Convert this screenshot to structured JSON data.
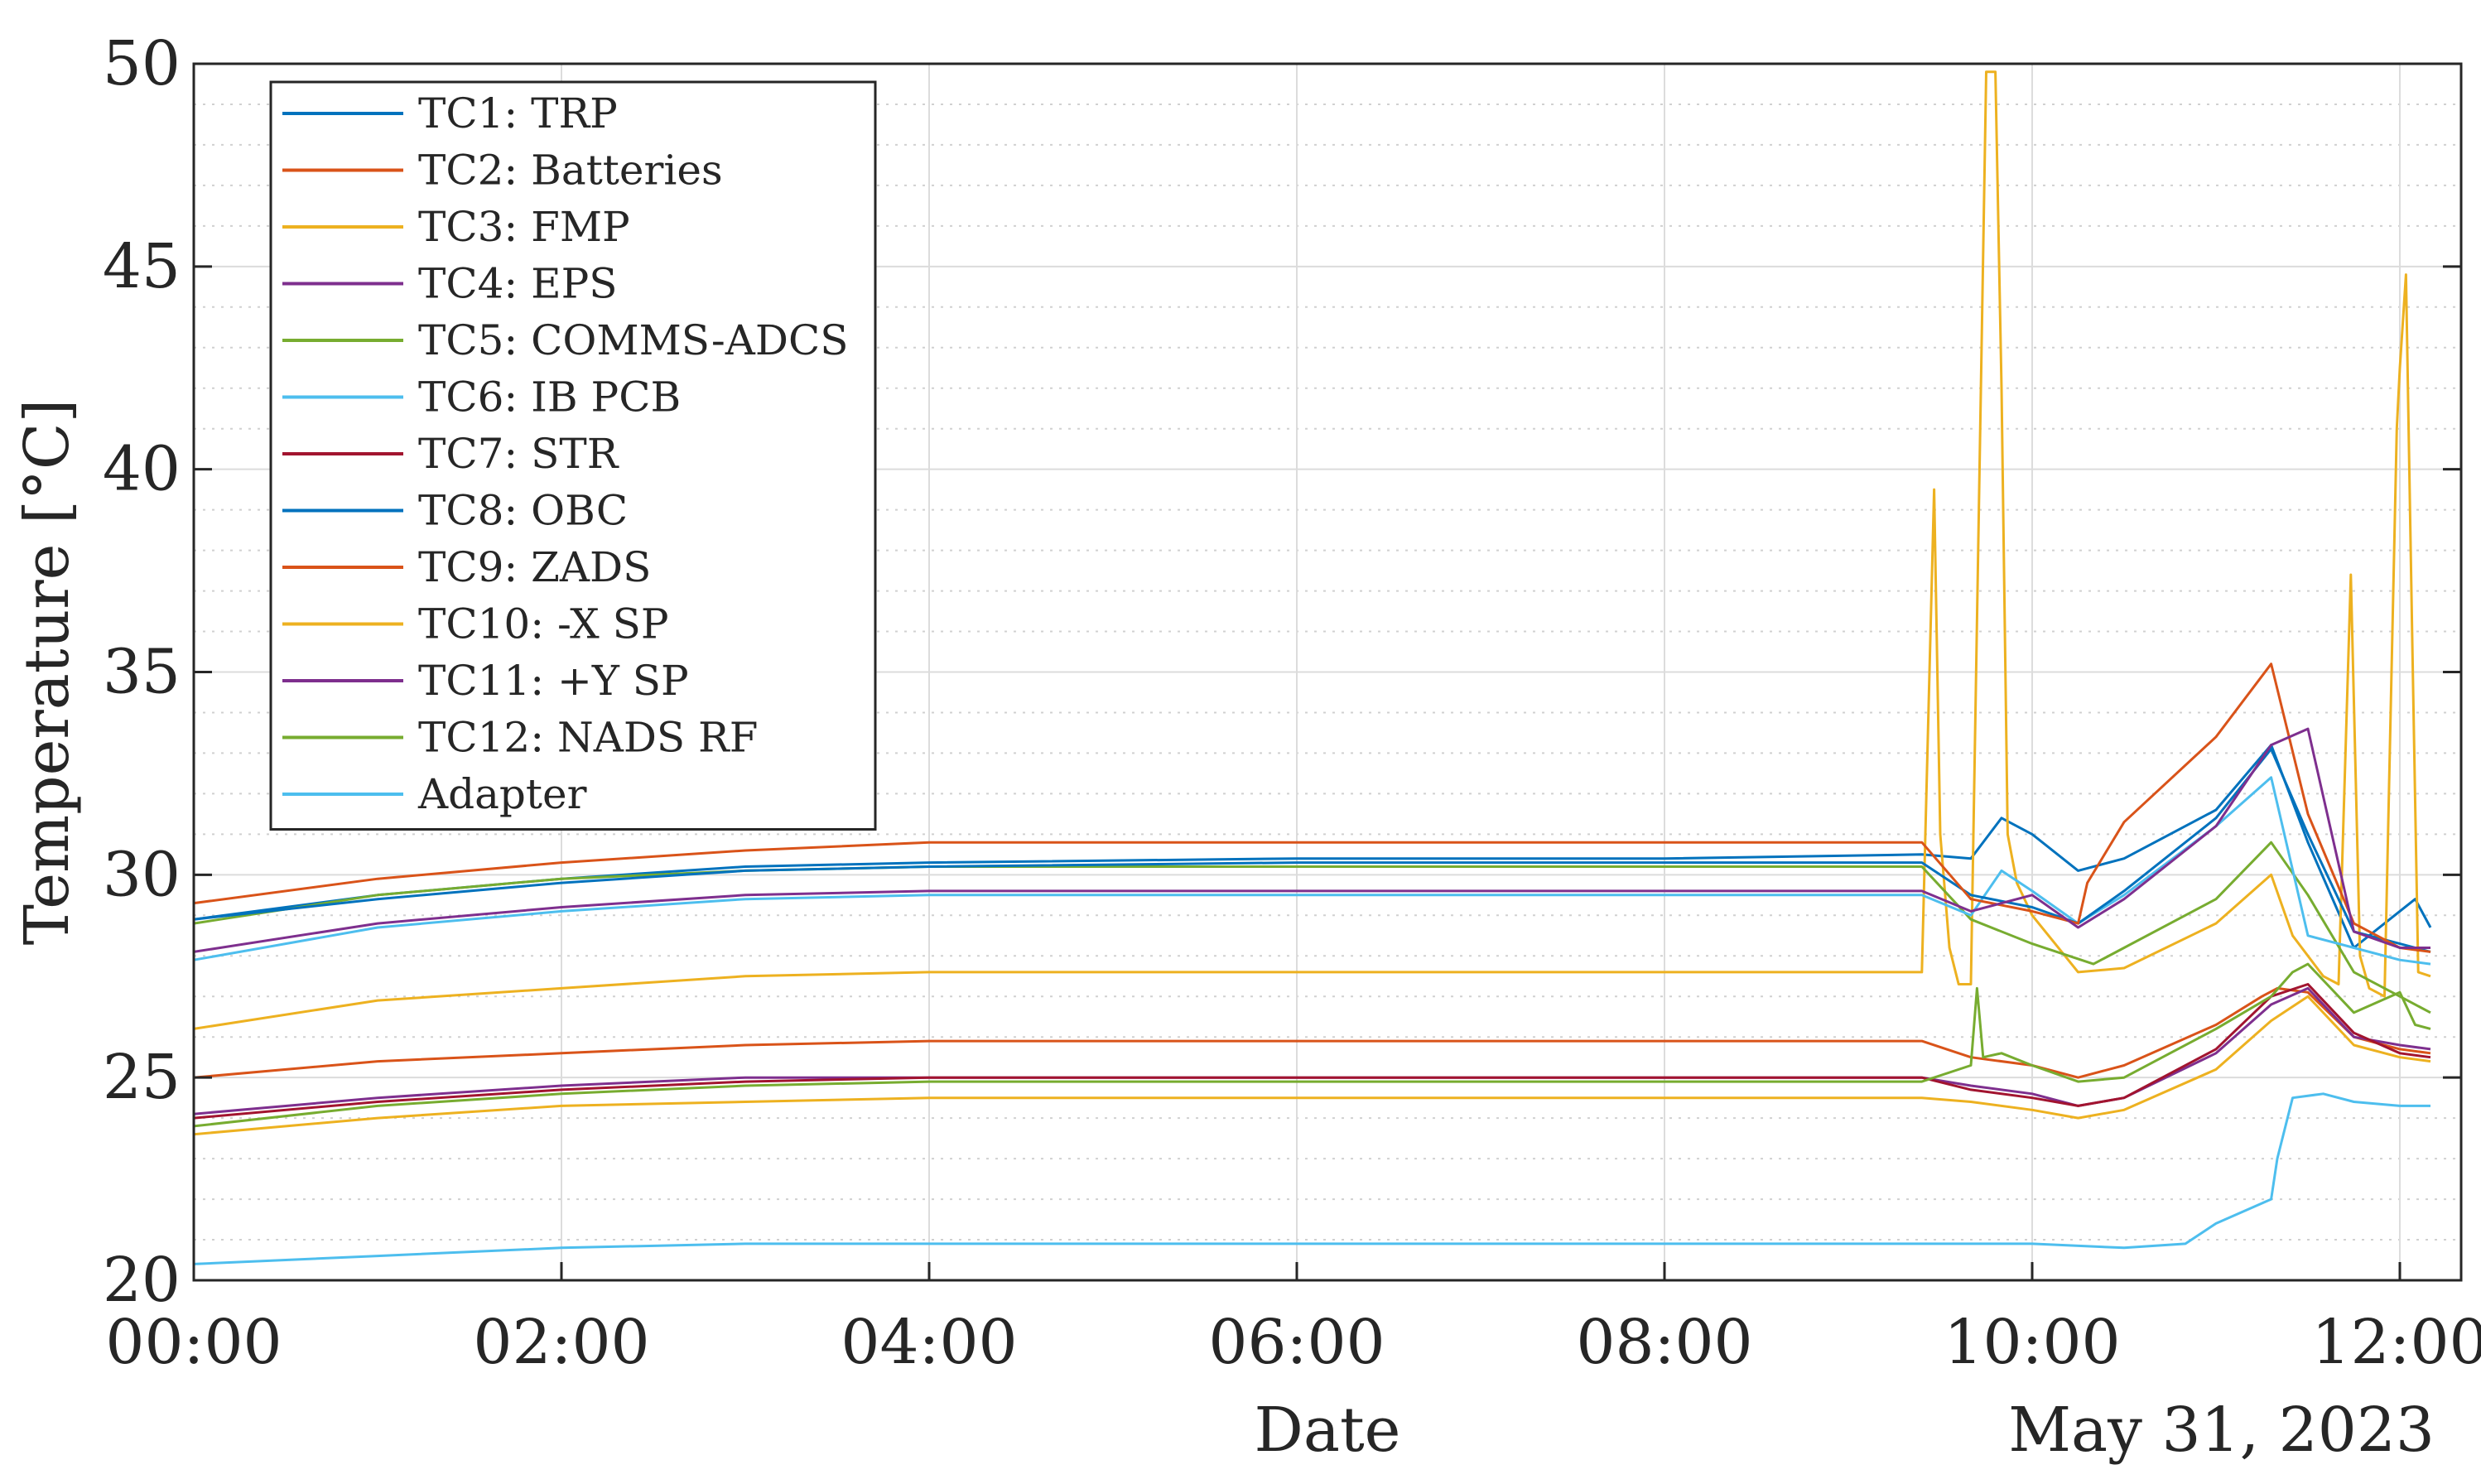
{
  "chart_data": {
    "type": "line",
    "ylabel": "Temperature [°C]",
    "xlabel": "Date",
    "date_label": "May 31, 2023",
    "xlim": [
      "00:00",
      "12:20"
    ],
    "ylim": [
      20,
      50
    ],
    "x_ticks": [
      "00:00",
      "02:00",
      "04:00",
      "06:00",
      "08:00",
      "10:00",
      "12:00"
    ],
    "y_ticks": [
      "20",
      "25",
      "30",
      "35",
      "40",
      "45",
      "50"
    ],
    "grid": true,
    "minor_grid_y": true,
    "legend_position": "top-left",
    "series": [
      {
        "name": "TC1: TRP",
        "color": "#0072BD",
        "x": [
          "00:00",
          "01:00",
          "02:00",
          "03:00",
          "04:00",
          "06:00",
          "08:00",
          "09:24",
          "09:40",
          "09:50",
          "10:00",
          "10:15",
          "10:30",
          "11:00",
          "11:18",
          "11:30",
          "11:45",
          "11:55",
          "12:05",
          "12:10"
        ],
        "y": [
          28.9,
          29.5,
          29.9,
          30.2,
          30.3,
          30.4,
          30.4,
          30.5,
          30.4,
          31.4,
          31.0,
          30.1,
          30.4,
          31.6,
          33.2,
          30.8,
          28.2,
          28.8,
          29.4,
          28.7
        ]
      },
      {
        "name": "TC2: Batteries",
        "color": "#D95319",
        "x": [
          "00:00",
          "01:00",
          "02:00",
          "03:00",
          "04:00",
          "06:00",
          "08:00",
          "09:24",
          "09:40",
          "10:00",
          "10:15",
          "10:30",
          "11:00",
          "11:15",
          "11:20",
          "11:30",
          "11:45",
          "12:00",
          "12:10"
        ],
        "y": [
          25.0,
          25.4,
          25.6,
          25.8,
          25.9,
          25.9,
          25.9,
          25.9,
          25.5,
          25.3,
          25.0,
          25.3,
          26.3,
          27.0,
          27.2,
          27.1,
          26.0,
          25.7,
          25.6
        ]
      },
      {
        "name": "TC3: FMP",
        "color": "#EDB120",
        "x": [
          "00:00",
          "01:00",
          "02:00",
          "03:00",
          "04:00",
          "06:00",
          "08:00",
          "09:24",
          "09:28",
          "09:30",
          "09:33",
          "09:36",
          "09:40",
          "09:45",
          "09:48",
          "09:50",
          "09:52",
          "09:55",
          "10:00",
          "10:15",
          "10:30",
          "11:00",
          "11:18",
          "11:25",
          "11:35",
          "11:40",
          "11:44",
          "11:47",
          "11:50",
          "11:55",
          "11:59",
          "12:00",
          "12:02",
          "12:04",
          "12:06",
          "12:10"
        ],
        "y": [
          26.2,
          26.9,
          27.2,
          27.5,
          27.6,
          27.6,
          27.6,
          27.6,
          39.5,
          31.0,
          28.2,
          27.3,
          27.3,
          49.8,
          49.8,
          42.0,
          31.0,
          29.8,
          29.0,
          27.6,
          27.7,
          28.8,
          30.0,
          28.5,
          27.5,
          27.3,
          37.4,
          28.0,
          27.2,
          27.0,
          41.0,
          42.5,
          44.8,
          36.0,
          27.6,
          27.5
        ]
      },
      {
        "name": "TC4: EPS",
        "color": "#7E2F8E",
        "x": [
          "00:00",
          "01:00",
          "02:00",
          "03:00",
          "04:00",
          "06:00",
          "08:00",
          "09:24",
          "09:40",
          "10:00",
          "10:15",
          "10:30",
          "11:00",
          "11:18",
          "11:30",
          "11:45",
          "12:00",
          "12:10"
        ],
        "y": [
          24.1,
          24.5,
          24.8,
          25.0,
          25.0,
          25.0,
          25.0,
          25.0,
          24.8,
          24.6,
          24.3,
          24.5,
          25.6,
          26.8,
          27.2,
          26.0,
          25.8,
          25.7
        ]
      },
      {
        "name": "TC5: COMMS-ADCS",
        "color": "#77AC30",
        "x": [
          "00:00",
          "01:00",
          "02:00",
          "03:00",
          "04:00",
          "06:00",
          "08:00",
          "09:24",
          "09:40",
          "10:00",
          "10:20",
          "10:30",
          "11:00",
          "11:18",
          "11:30",
          "11:45",
          "12:00",
          "12:10"
        ],
        "y": [
          28.8,
          29.5,
          29.9,
          30.1,
          30.2,
          30.2,
          30.2,
          30.2,
          28.9,
          28.3,
          27.8,
          28.2,
          29.4,
          30.8,
          29.5,
          27.6,
          27.0,
          26.6
        ]
      },
      {
        "name": "TC6: IB PCB",
        "color": "#4DBEEE",
        "x": [
          "00:00",
          "01:00",
          "02:00",
          "03:00",
          "04:00",
          "06:00",
          "08:00",
          "09:24",
          "09:40",
          "09:50",
          "10:00",
          "10:15",
          "10:30",
          "11:00",
          "11:18",
          "11:30",
          "11:45",
          "12:00",
          "12:10"
        ],
        "y": [
          27.9,
          28.7,
          29.1,
          29.4,
          29.5,
          29.5,
          29.5,
          29.5,
          29.0,
          30.1,
          29.6,
          28.8,
          29.5,
          31.2,
          32.4,
          28.5,
          28.2,
          27.9,
          27.8
        ]
      },
      {
        "name": "TC7: STR",
        "color": "#A2142F",
        "x": [
          "00:00",
          "01:00",
          "02:00",
          "03:00",
          "04:00",
          "06:00",
          "08:00",
          "09:24",
          "09:40",
          "10:00",
          "10:15",
          "10:30",
          "11:00",
          "11:18",
          "11:30",
          "11:45",
          "12:00",
          "12:10"
        ],
        "y": [
          24.0,
          24.4,
          24.7,
          24.9,
          25.0,
          25.0,
          25.0,
          25.0,
          24.7,
          24.5,
          24.3,
          24.5,
          25.7,
          27.0,
          27.3,
          26.1,
          25.6,
          25.5
        ]
      },
      {
        "name": "TC8: OBC",
        "color": "#0072BD",
        "x": [
          "00:00",
          "01:00",
          "02:00",
          "03:00",
          "04:00",
          "06:00",
          "08:00",
          "09:24",
          "09:40",
          "10:00",
          "10:15",
          "10:30",
          "11:00",
          "11:18",
          "11:30",
          "11:45",
          "12:00",
          "12:10"
        ],
        "y": [
          28.9,
          29.4,
          29.8,
          30.1,
          30.2,
          30.3,
          30.3,
          30.3,
          29.5,
          29.2,
          28.8,
          29.6,
          31.4,
          33.1,
          31.0,
          28.6,
          28.3,
          28.1
        ]
      },
      {
        "name": "TC9: ZADS",
        "color": "#D95319",
        "x": [
          "00:00",
          "01:00",
          "02:00",
          "03:00",
          "04:00",
          "06:00",
          "08:00",
          "09:24",
          "09:40",
          "10:00",
          "10:15",
          "10:18",
          "10:30",
          "11:00",
          "11:18",
          "11:30",
          "11:45",
          "12:00",
          "12:10"
        ],
        "y": [
          29.3,
          29.9,
          30.3,
          30.6,
          30.8,
          30.8,
          30.8,
          30.8,
          29.4,
          29.1,
          28.8,
          29.8,
          31.3,
          33.4,
          35.2,
          31.5,
          28.8,
          28.2,
          28.1
        ]
      },
      {
        "name": "TC10: -X SP",
        "color": "#EDB120",
        "x": [
          "00:00",
          "01:00",
          "02:00",
          "03:00",
          "04:00",
          "06:00",
          "08:00",
          "09:24",
          "09:40",
          "10:00",
          "10:15",
          "10:30",
          "11:00",
          "11:18",
          "11:30",
          "11:45",
          "12:00",
          "12:10"
        ],
        "y": [
          23.6,
          24.0,
          24.3,
          24.4,
          24.5,
          24.5,
          24.5,
          24.5,
          24.4,
          24.2,
          24.0,
          24.2,
          25.2,
          26.4,
          27.0,
          25.8,
          25.5,
          25.4
        ]
      },
      {
        "name": "TC11: +Y SP",
        "color": "#7E2F8E",
        "x": [
          "00:00",
          "01:00",
          "02:00",
          "03:00",
          "04:00",
          "06:00",
          "08:00",
          "09:24",
          "09:40",
          "10:00",
          "10:15",
          "10:30",
          "11:00",
          "11:18",
          "11:30",
          "11:45",
          "12:00",
          "12:10"
        ],
        "y": [
          28.1,
          28.8,
          29.2,
          29.5,
          29.6,
          29.6,
          29.6,
          29.6,
          29.1,
          29.5,
          28.7,
          29.4,
          31.2,
          33.2,
          33.6,
          28.6,
          28.2,
          28.2
        ]
      },
      {
        "name": "TC12: NADS RF",
        "color": "#77AC30",
        "x": [
          "00:00",
          "01:00",
          "02:00",
          "03:00",
          "04:00",
          "06:00",
          "08:00",
          "09:24",
          "09:40",
          "09:42",
          "09:44",
          "09:50",
          "10:00",
          "10:15",
          "10:30",
          "11:00",
          "11:18",
          "11:25",
          "11:30",
          "11:45",
          "12:00",
          "12:05",
          "12:10"
        ],
        "y": [
          23.8,
          24.3,
          24.6,
          24.8,
          24.9,
          24.9,
          24.9,
          24.9,
          25.3,
          27.2,
          25.5,
          25.6,
          25.3,
          24.9,
          25.0,
          26.2,
          27.0,
          27.6,
          27.8,
          26.6,
          27.1,
          26.3,
          26.2
        ]
      },
      {
        "name": "Adapter",
        "color": "#4DBEEE",
        "x": [
          "00:00",
          "01:00",
          "02:00",
          "03:00",
          "04:00",
          "06:00",
          "08:00",
          "10:00",
          "10:30",
          "10:50",
          "11:00",
          "11:15",
          "11:18",
          "11:20",
          "11:25",
          "11:35",
          "11:45",
          "12:00",
          "12:10"
        ],
        "y": [
          20.4,
          20.6,
          20.8,
          20.9,
          20.9,
          20.9,
          20.9,
          20.9,
          20.8,
          20.9,
          21.4,
          21.9,
          22.0,
          23.0,
          24.5,
          24.6,
          24.4,
          24.3,
          24.3
        ]
      }
    ]
  }
}
